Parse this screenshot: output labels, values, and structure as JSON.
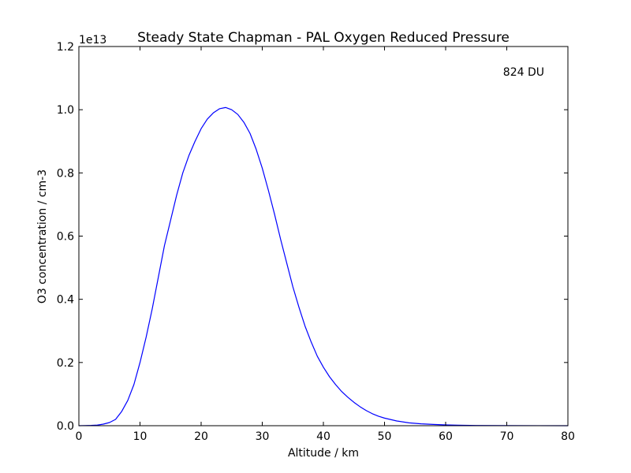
{
  "chart_data": {
    "type": "line",
    "title": "Steady State Chapman - PAL Oxygen Reduced Pressure",
    "xlabel": "Altitude / km",
    "ylabel": "O3 concentration / cm-3",
    "y_offset_label": "1e13",
    "annotation": "824 DU",
    "xlim": [
      0,
      80
    ],
    "ylim": [
      0,
      1.2
    ],
    "y_scale_factor": 10000000000000.0,
    "xticks": [
      "0",
      "10",
      "20",
      "30",
      "40",
      "50",
      "60",
      "70",
      "80"
    ],
    "yticks": [
      "0.0",
      "0.2",
      "0.4",
      "0.6",
      "0.8",
      "1.0",
      "1.2"
    ],
    "grid": false,
    "series": [
      {
        "color": "#0000ff",
        "x": [
          0,
          1,
          2,
          3,
          4,
          5,
          6,
          7,
          8,
          9,
          10,
          11,
          12,
          13,
          14,
          15,
          16,
          17,
          18,
          19,
          20,
          21,
          22,
          23,
          24,
          25,
          26,
          27,
          28,
          29,
          30,
          31,
          32,
          33,
          34,
          35,
          36,
          37,
          38,
          39,
          40,
          41,
          42,
          43,
          44,
          45,
          46,
          47,
          48,
          49,
          50,
          52,
          54,
          56,
          58,
          60,
          62,
          65,
          70,
          75,
          80
        ],
        "y": [
          0.0,
          0.0005,
          0.001,
          0.002,
          0.005,
          0.01,
          0.02,
          0.045,
          0.08,
          0.13,
          0.2,
          0.28,
          0.37,
          0.47,
          0.57,
          0.65,
          0.73,
          0.8,
          0.855,
          0.9,
          0.94,
          0.97,
          0.99,
          1.003,
          1.007,
          1.0,
          0.985,
          0.96,
          0.925,
          0.875,
          0.815,
          0.745,
          0.67,
          0.59,
          0.515,
          0.44,
          0.375,
          0.315,
          0.265,
          0.22,
          0.185,
          0.155,
          0.13,
          0.108,
          0.09,
          0.074,
          0.06,
          0.048,
          0.038,
          0.03,
          0.024,
          0.015,
          0.009,
          0.006,
          0.004,
          0.0025,
          0.0015,
          0.0008,
          0.0003,
          0.0001,
          0.0
        ]
      }
    ]
  }
}
